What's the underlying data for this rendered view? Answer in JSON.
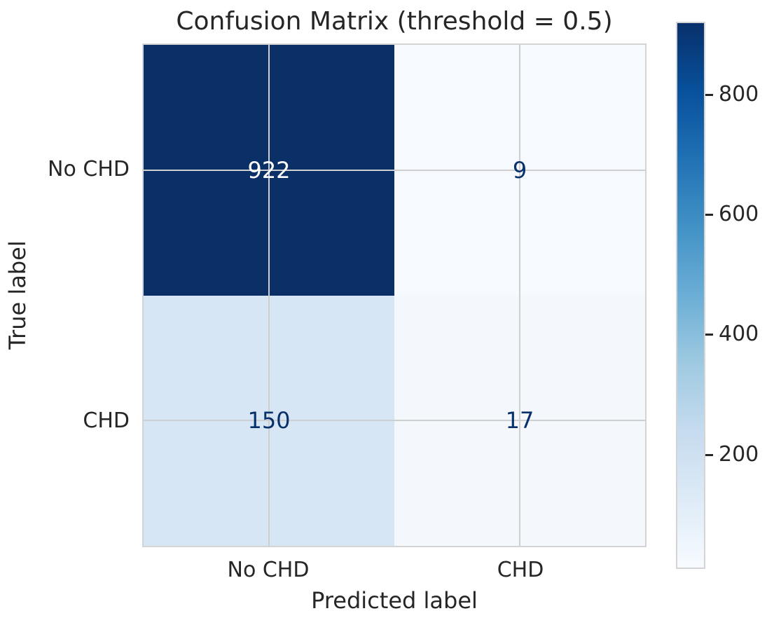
{
  "figure": {
    "background": "#ffffff",
    "text_color": "#262626"
  },
  "chart_data": {
    "type": "heatmap",
    "title": "Confusion Matrix (threshold = 0.5)",
    "xlabel": "Predicted label",
    "ylabel": "True label",
    "x_tick_labels": [
      "No CHD",
      "CHD"
    ],
    "y_tick_labels": [
      "No CHD",
      "CHD"
    ],
    "matrix": [
      [
        922,
        9
      ],
      [
        150,
        17
      ]
    ],
    "cell_colors": [
      [
        "#0b3068",
        "#f6fafe"
      ],
      [
        "#d7e6f5",
        "#f4f8fd"
      ]
    ],
    "cell_text_colors": [
      [
        "#ffffff",
        "#08306b"
      ],
      [
        "#08306b",
        "#08306b"
      ]
    ],
    "colormap": "Blues",
    "colormap_min_color": "#f7fbff",
    "colormap_max_color": "#08306b",
    "vmin": 9,
    "vmax": 922,
    "colorbar_ticks": [
      200,
      400,
      600,
      800
    ],
    "legend_position": "right-colorbar",
    "grid": true,
    "grid_color": "#cfcfcf",
    "spine_color": "#d4d4d4"
  }
}
